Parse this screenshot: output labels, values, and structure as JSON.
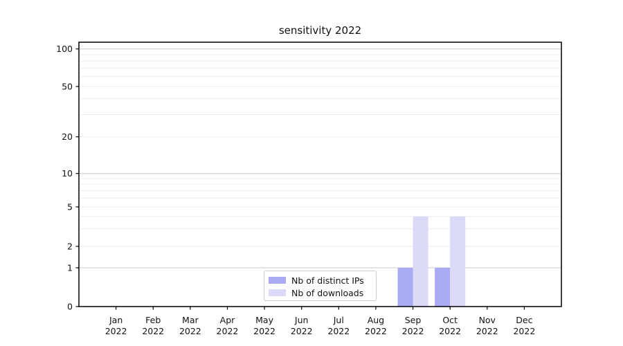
{
  "chart_data": {
    "type": "bar",
    "title": "sensitivity 2022",
    "categories": [
      "Jan 2022",
      "Feb 2022",
      "Mar 2022",
      "Apr 2022",
      "May 2022",
      "Jun 2022",
      "Jul 2022",
      "Aug 2022",
      "Sep 2022",
      "Oct 2022",
      "Nov 2022",
      "Dec 2022"
    ],
    "series": [
      {
        "name": "Nb of distinct IPs",
        "color": "#a9a9f4",
        "values": [
          0,
          0,
          0,
          0,
          0,
          0,
          0,
          0,
          1,
          1,
          0,
          0
        ]
      },
      {
        "name": "Nb of downloads",
        "color": "#dbdbf7",
        "values": [
          0,
          0,
          0,
          0,
          0,
          0,
          0,
          0,
          4,
          4,
          0,
          0
        ]
      }
    ],
    "yticks": [
      0,
      1,
      2,
      5,
      10,
      20,
      50,
      100
    ],
    "ylim": [
      0,
      115
    ],
    "yscale": "symlog",
    "grid": true,
    "legend_position": "lower center",
    "colors": {
      "major_gridline": "#c8c8c8",
      "minor_gridline": "#ebebeb",
      "axis": "#000000",
      "text": "#111111"
    }
  }
}
